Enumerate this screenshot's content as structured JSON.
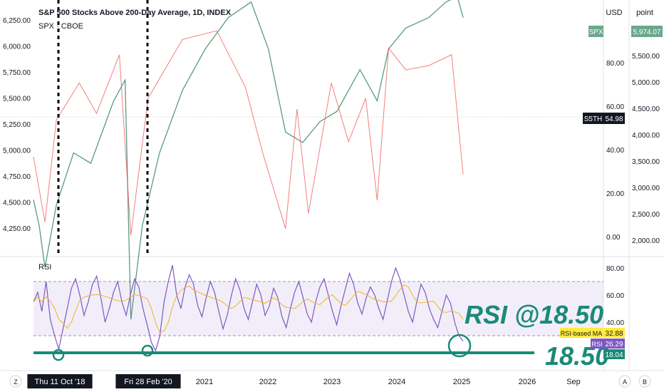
{
  "chart_data": [
    {
      "type": "candlestick",
      "title": "S&P 500 Stocks Above 200-Day Average, 1D, INDEX",
      "series": [
        {
          "name": "S5TH",
          "last": "54.98",
          "color": "#131722"
        },
        {
          "name": "SPX · CBOE",
          "last": "5,974.07",
          "color": "#5b9a83"
        }
      ],
      "left_axis_ticks": [
        "6,250.00",
        "6,000.00",
        "5,750.00",
        "5,500.00",
        "5,250.00",
        "5,000.00",
        "4,750.00",
        "4,500.00",
        "4,250.00"
      ],
      "right_axis_ticks": [
        "80.00",
        "60.00",
        "40.00",
        "20.00",
        "0.00"
      ],
      "far_right_axis_ticks": [
        "5,500.00",
        "5,000.00",
        "4,500.00",
        "4,000.00",
        "3,500.00",
        "3,000.00",
        "2,500.00",
        "2,000.00"
      ],
      "currency_labels": [
        "USD",
        "point"
      ],
      "spx_badge": "SPX",
      "s5th_badge": "S5TH",
      "s5th_value": "54.98",
      "spx_value": "5,974.07",
      "spx_line": [
        [
          "2018-10",
          4550
        ],
        [
          "2018-11",
          4300
        ],
        [
          "2018-12",
          3900
        ],
        [
          "2019-02",
          4500
        ],
        [
          "2019-05",
          5000
        ],
        [
          "2019-08",
          4900
        ],
        [
          "2019-12",
          5500
        ],
        [
          "2020-02",
          5700
        ],
        [
          "2020-03",
          3400
        ],
        [
          "2020-05",
          4300
        ],
        [
          "2020-08",
          5000
        ],
        [
          "2020-12",
          5600
        ],
        [
          "2021-04",
          6000
        ],
        [
          "2021-08",
          6300
        ],
        [
          "2021-12",
          6450
        ],
        [
          "2022-03",
          6000
        ],
        [
          "2022-06",
          5200
        ],
        [
          "2022-09",
          5100
        ],
        [
          "2022-12",
          5300
        ],
        [
          "2023-03",
          5400
        ],
        [
          "2023-07",
          5800
        ],
        [
          "2023-10",
          5500
        ],
        [
          "2023-12",
          6000
        ],
        [
          "2024-03",
          6200
        ],
        [
          "2024-07",
          6300
        ],
        [
          "2024-10",
          6450
        ],
        [
          "2024-12",
          6500
        ],
        [
          "2025-01",
          6300
        ]
      ],
      "s5th_line": [
        [
          "2018-10",
          38
        ],
        [
          "2018-12",
          8
        ],
        [
          "2019-02",
          55
        ],
        [
          "2019-06",
          72
        ],
        [
          "2019-09",
          58
        ],
        [
          "2020-01",
          85
        ],
        [
          "2020-03",
          2
        ],
        [
          "2020-06",
          65
        ],
        [
          "2020-12",
          92
        ],
        [
          "2021-06",
          96
        ],
        [
          "2021-11",
          70
        ],
        [
          "2022-02",
          40
        ],
        [
          "2022-06",
          5
        ],
        [
          "2022-08",
          60
        ],
        [
          "2022-10",
          12
        ],
        [
          "2023-02",
          72
        ],
        [
          "2023-05",
          45
        ],
        [
          "2023-08",
          65
        ],
        [
          "2023-10",
          18
        ],
        [
          "2023-12",
          88
        ],
        [
          "2024-03",
          78
        ],
        [
          "2024-07",
          80
        ],
        [
          "2024-11",
          85
        ],
        [
          "2025-01",
          30
        ]
      ]
    },
    {
      "type": "line",
      "title": "RSI",
      "ylim": [
        10,
        85
      ],
      "y_ticks": [
        "80.00",
        "60.00",
        "40.00"
      ],
      "band": [
        30,
        70
      ],
      "series": [
        {
          "name": "RSI",
          "color": "#7e57c2",
          "last": "26.29"
        },
        {
          "name": "RSI-based MA",
          "color": "#f5b223",
          "last": "32.88"
        }
      ],
      "extra_badge": "18.04",
      "support_level": 18.5,
      "annotation": "RSI @18.50",
      "annotation2": "18.50",
      "rsi_values": [
        55,
        62,
        48,
        70,
        42,
        30,
        20,
        35,
        50,
        65,
        72,
        60,
        45,
        55,
        68,
        74,
        58,
        40,
        50,
        62,
        70,
        55,
        45,
        60,
        72,
        66,
        50,
        38,
        25,
        19,
        30,
        55,
        70,
        82,
        60,
        50,
        66,
        75,
        68,
        52,
        44,
        58,
        70,
        62,
        48,
        35,
        45,
        60,
        72,
        64,
        50,
        42,
        55,
        68,
        60,
        45,
        52,
        65,
        58,
        44,
        36,
        50,
        62,
        70,
        58,
        46,
        40,
        55,
        66,
        72,
        60,
        48,
        38,
        52,
        64,
        76,
        68,
        54,
        46,
        58,
        66,
        60,
        50,
        42,
        56,
        70,
        80,
        72,
        60,
        48,
        40,
        55,
        68,
        62,
        50,
        42,
        36,
        48,
        60,
        54,
        40,
        30,
        26
      ]
    }
  ],
  "dates": [
    {
      "label": "Thu 11 Oct '18",
      "highlight": true
    },
    {
      "label": "Fri 28 Feb '20",
      "highlight": true
    },
    {
      "label": "2021",
      "highlight": false
    },
    {
      "label": "2022",
      "highlight": false
    },
    {
      "label": "2023",
      "highlight": false
    },
    {
      "label": "2024",
      "highlight": false
    },
    {
      "label": "2025",
      "highlight": false
    },
    {
      "label": "2026",
      "highlight": false
    },
    {
      "label": "Sep",
      "highlight": false
    }
  ],
  "bottom_icons": {
    "left": "Z",
    "right_a": "A",
    "right_b": "B"
  },
  "ui": {
    "show_grid": false,
    "legend_position": "top-left"
  }
}
